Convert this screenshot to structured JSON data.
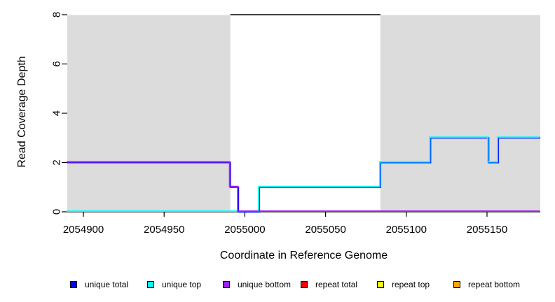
{
  "chart_data": {
    "type": "line",
    "subtype": "step-coverage",
    "title": "",
    "xlabel": "Coordinate in Reference Genome",
    "ylabel": "Read Coverage Depth",
    "x_domain": [
      2054890,
      2055183
    ],
    "y_domain": [
      0,
      8
    ],
    "x_ticks": [
      2054900,
      2054950,
      2055000,
      2055050,
      2055100,
      2055150
    ],
    "y_ticks": [
      0,
      2,
      4,
      6,
      8
    ],
    "grid": false,
    "axis_color": "#000000",
    "shaded_regions": [
      {
        "name": "left-shaded-region",
        "x0": 2054890,
        "x1": 2054991,
        "color": "#DCDCDC"
      },
      {
        "name": "right-shaded-region",
        "x0": 2055084,
        "x1": 2055183,
        "color": "#DCDCDC"
      }
    ],
    "annotations": [
      {
        "type": "segment",
        "x0": 2054991,
        "x1": 2055084,
        "y": 8,
        "color": "#000000"
      }
    ],
    "series": [
      {
        "name": "unique total",
        "color": "#0000FF",
        "points": [
          [
            2054890,
            2
          ],
          [
            2054991,
            2
          ],
          [
            2054991,
            1
          ],
          [
            2054996,
            1
          ],
          [
            2054996,
            0
          ],
          [
            2055009,
            0
          ],
          [
            2055009,
            1
          ],
          [
            2055084,
            1
          ],
          [
            2055084,
            2
          ],
          [
            2055115,
            2
          ],
          [
            2055115,
            3
          ],
          [
            2055151,
            3
          ],
          [
            2055151,
            2
          ],
          [
            2055157,
            2
          ],
          [
            2055157,
            3
          ],
          [
            2055183,
            3
          ]
        ]
      },
      {
        "name": "unique top",
        "color": "#00FFFF",
        "points": [
          [
            2054890,
            0
          ],
          [
            2055009,
            0
          ],
          [
            2055009,
            1
          ],
          [
            2055084,
            1
          ],
          [
            2055084,
            2
          ],
          [
            2055115,
            2
          ],
          [
            2055115,
            3
          ],
          [
            2055151,
            3
          ],
          [
            2055151,
            2
          ],
          [
            2055157,
            2
          ],
          [
            2055157,
            3
          ],
          [
            2055183,
            3
          ]
        ]
      },
      {
        "name": "unique bottom",
        "color": "#A020F0",
        "points": [
          [
            2054890,
            2
          ],
          [
            2054991,
            2
          ],
          [
            2054991,
            1
          ],
          [
            2054996,
            1
          ],
          [
            2054996,
            0
          ],
          [
            2055183,
            0
          ]
        ]
      }
    ],
    "legend": [
      {
        "label": "unique total",
        "color": "#0000FF"
      },
      {
        "label": "unique top",
        "color": "#00FFFF"
      },
      {
        "label": "unique bottom",
        "color": "#A020F0"
      },
      {
        "label": "repeat total",
        "color": "#FF0000"
      },
      {
        "label": "repeat top",
        "color": "#FFFF00"
      },
      {
        "label": "repeat bottom",
        "color": "#FFA500"
      }
    ],
    "legend_position": "bottom"
  }
}
